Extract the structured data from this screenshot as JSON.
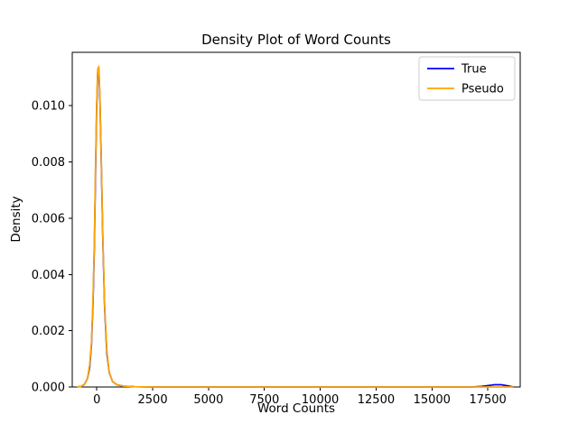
{
  "chart_data": {
    "type": "line",
    "title": "Density Plot of Word Counts",
    "xlabel": "Word Counts",
    "ylabel": "Density",
    "xlim": [
      -1100,
      18950
    ],
    "ylim": [
      0,
      0.0119
    ],
    "xticks": [
      0,
      2500,
      5000,
      7500,
      10000,
      12500,
      15000,
      17500
    ],
    "xtick_labels": [
      "0",
      "2500",
      "5000",
      "7500",
      "10000",
      "12500",
      "15000",
      "17500"
    ],
    "yticks": [
      0.0,
      0.002,
      0.004,
      0.006,
      0.008,
      0.01
    ],
    "ytick_labels": [
      "0.000",
      "0.002",
      "0.004",
      "0.006",
      "0.008",
      "0.010"
    ],
    "grid": false,
    "legend": {
      "position": "upper right",
      "entries": [
        {
          "label": "True",
          "color": "#0000ff"
        },
        {
          "label": "Pseudo",
          "color": "#ffa500"
        }
      ]
    },
    "series": [
      {
        "name": "True",
        "color": "#0000ff",
        "x": [
          -900,
          -700,
          -550,
          -420,
          -320,
          -240,
          -170,
          -110,
          -60,
          -10,
          40,
          90,
          140,
          200,
          270,
          350,
          450,
          560,
          700,
          900,
          1200,
          1700,
          2500,
          4000,
          6000,
          9000,
          12000,
          15000,
          16800,
          17200,
          17500,
          17800,
          18100,
          18400,
          18650
        ],
        "y": [
          0.0,
          2e-05,
          0.0001,
          0.0003,
          0.0007,
          0.0015,
          0.003,
          0.005,
          0.0075,
          0.0098,
          0.0112,
          0.0113,
          0.0102,
          0.008,
          0.0052,
          0.0028,
          0.0012,
          0.0005,
          0.0002,
          8e-05,
          3e-05,
          1e-05,
          0.0,
          0.0,
          0.0,
          0.0,
          0.0,
          0.0,
          0.0,
          2e-05,
          5e-05,
          8e-05,
          8e-05,
          4e-05,
          0.0
        ]
      },
      {
        "name": "Pseudo",
        "color": "#ffa500",
        "x": [
          -900,
          -700,
          -550,
          -420,
          -320,
          -240,
          -170,
          -110,
          -60,
          -10,
          40,
          90,
          140,
          200,
          270,
          350,
          450,
          560,
          700,
          900,
          1200,
          1700,
          2500,
          4000,
          6000,
          9000,
          12000,
          15000,
          18000,
          18650
        ],
        "y": [
          0.0,
          2e-05,
          0.0001,
          0.0003,
          0.0008,
          0.0016,
          0.0032,
          0.0052,
          0.0078,
          0.01,
          0.0113,
          0.0114,
          0.0103,
          0.0081,
          0.0053,
          0.0029,
          0.0013,
          0.0005,
          0.0002,
          8e-05,
          3e-05,
          1e-05,
          0.0,
          0.0,
          0.0,
          0.0,
          0.0,
          0.0,
          0.0,
          0.0
        ]
      }
    ]
  },
  "colors": {
    "axis": "#000000",
    "background": "#ffffff",
    "legend_border": "#cccccc"
  }
}
